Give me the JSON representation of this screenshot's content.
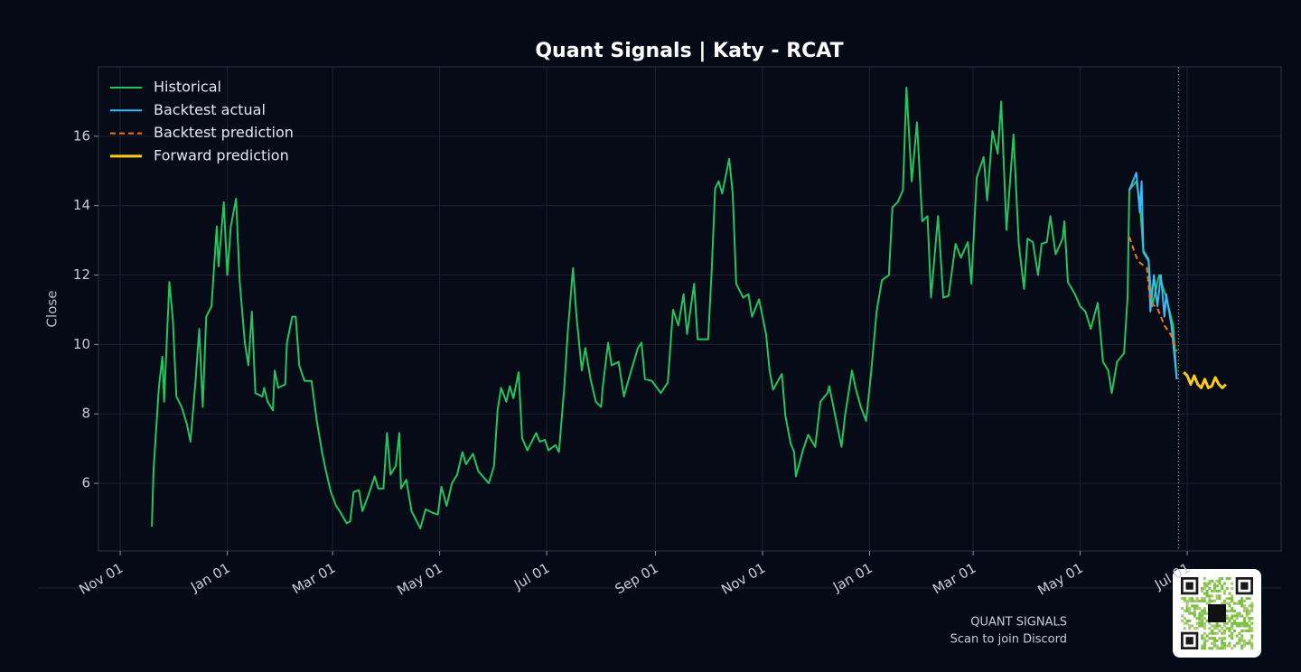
{
  "chart_data": {
    "type": "line",
    "title": "Quant Signals | Katy - RCAT",
    "y_label": "Close",
    "xlim": [
      -12.4,
      661.5
    ],
    "ylim": [
      4.05,
      18.0
    ],
    "xticks": [
      {
        "value": 0,
        "label": "Nov 01"
      },
      {
        "value": 61,
        "label": "Jan 01"
      },
      {
        "value": 121,
        "label": "Mar 01"
      },
      {
        "value": 182,
        "label": "May 01"
      },
      {
        "value": 243,
        "label": "Jul 01"
      },
      {
        "value": 305,
        "label": "Sep 01"
      },
      {
        "value": 366,
        "label": "Nov 01"
      },
      {
        "value": 427,
        "label": "Jan 01"
      },
      {
        "value": 486,
        "label": "Mar 01"
      },
      {
        "value": 547,
        "label": "May 01"
      },
      {
        "value": 608,
        "label": "Jul 01"
      }
    ],
    "yticks": [
      6,
      8,
      10,
      12,
      14,
      16
    ],
    "grid": true,
    "legend": "upper left",
    "marker_x": 603,
    "series": [
      {
        "name": "Historical",
        "color": "#22c55e",
        "style": "solid",
        "x": [
          18,
          19,
          22,
          24,
          25,
          28,
          30,
          32,
          35,
          38,
          40,
          43,
          45,
          47,
          49,
          52,
          55,
          56,
          59,
          61,
          63,
          66,
          68,
          71,
          73,
          75,
          77,
          81,
          82,
          84,
          87,
          88,
          90,
          94,
          95,
          98,
          100,
          102,
          105,
          109,
          112,
          115,
          117,
          120,
          123,
          125,
          129,
          131,
          133,
          136,
          138,
          141,
          145,
          147,
          150,
          152,
          154,
          157,
          159,
          160,
          163,
          166,
          171,
          174,
          178,
          181,
          183,
          186,
          189,
          192,
          195,
          197,
          201,
          204,
          210,
          213,
          215,
          217,
          220,
          222,
          224,
          227,
          229,
          232,
          237,
          239,
          242,
          244,
          248,
          250,
          253,
          255,
          258,
          260,
          263,
          265,
          268,
          271,
          274,
          275,
          278,
          280,
          284,
          287,
          290,
          295,
          297,
          299,
          303,
          308,
          312,
          315,
          318,
          321,
          323,
          327,
          329,
          335,
          337,
          339,
          341,
          343,
          347,
          349,
          351,
          355,
          358,
          360,
          364,
          368,
          370,
          372,
          377,
          379,
          382,
          384,
          385,
          389,
          392,
          396,
          399,
          403,
          404,
          408,
          411,
          413,
          417,
          419,
          422,
          425,
          428,
          431,
          434,
          438,
          440,
          443,
          446,
          448,
          451,
          454,
          457,
          460,
          462,
          466,
          469,
          472,
          476,
          479,
          483,
          485,
          488,
          492,
          494,
          497,
          500,
          502,
          505,
          509,
          512,
          515,
          517,
          520,
          523,
          525,
          528,
          530,
          533,
          537,
          538,
          540,
          544,
          547,
          550,
          553,
          557,
          560,
          563,
          565,
          568,
          572,
          574,
          575,
          579,
          581,
          583,
          586,
          588,
          592,
          596,
          600,
          602
        ],
        "values": [
          4.75,
          6.4,
          8.75,
          9.65,
          8.35,
          11.8,
          10.7,
          8.5,
          8.2,
          7.7,
          7.2,
          9.0,
          10.45,
          8.2,
          10.8,
          11.1,
          13.4,
          12.25,
          14.1,
          12.0,
          13.4,
          14.2,
          11.85,
          10.05,
          9.4,
          10.95,
          8.6,
          8.5,
          8.75,
          8.35,
          8.1,
          9.25,
          8.75,
          8.85,
          10.05,
          10.8,
          10.8,
          9.4,
          8.95,
          8.95,
          7.8,
          6.9,
          6.4,
          5.75,
          5.35,
          5.2,
          4.85,
          4.9,
          5.75,
          5.8,
          5.2,
          5.6,
          6.2,
          5.85,
          5.85,
          7.45,
          6.25,
          6.5,
          7.45,
          5.85,
          6.1,
          5.2,
          4.7,
          5.25,
          5.15,
          5.1,
          5.9,
          5.35,
          6.0,
          6.25,
          6.9,
          6.55,
          6.85,
          6.35,
          6.0,
          6.5,
          8.1,
          8.75,
          8.35,
          8.8,
          8.45,
          9.2,
          7.3,
          6.95,
          7.45,
          7.2,
          7.25,
          6.95,
          7.1,
          6.9,
          8.75,
          10.35,
          12.2,
          10.8,
          9.25,
          9.9,
          9.0,
          8.35,
          8.2,
          8.8,
          10.05,
          9.4,
          9.5,
          8.5,
          9.05,
          9.9,
          10.05,
          9.0,
          8.95,
          8.6,
          8.9,
          11.0,
          10.55,
          11.45,
          10.3,
          11.75,
          10.15,
          10.15,
          12.1,
          14.5,
          14.7,
          14.35,
          15.35,
          14.35,
          11.75,
          11.35,
          11.45,
          10.8,
          11.3,
          10.3,
          9.25,
          8.7,
          9.15,
          7.95,
          7.15,
          6.9,
          6.2,
          6.95,
          7.4,
          7.05,
          8.35,
          8.6,
          8.8,
          7.8,
          7.05,
          7.95,
          9.25,
          8.75,
          8.2,
          7.8,
          9.25,
          10.95,
          11.85,
          12.0,
          13.95,
          14.1,
          14.45,
          17.4,
          14.7,
          16.4,
          13.55,
          13.7,
          11.35,
          13.7,
          11.35,
          11.4,
          12.9,
          12.5,
          12.95,
          11.75,
          14.8,
          15.4,
          14.15,
          16.15,
          15.5,
          17.0,
          13.3,
          16.05,
          12.9,
          11.6,
          13.05,
          12.95,
          12.0,
          12.9,
          12.95,
          13.7,
          12.6,
          13.05,
          13.55,
          11.8,
          11.45,
          11.1,
          10.95,
          10.45,
          11.2,
          9.5,
          9.25,
          8.6,
          9.5,
          9.75,
          11.35,
          14.45,
          14.7,
          14.1,
          12.65,
          12.4,
          11.1,
          12.0,
          11.35,
          10.55,
          9.0
        ]
      },
      {
        "name": "Backtest actual",
        "color": "#38bdf8",
        "style": "solid",
        "x": [
          575,
          577,
          579,
          581,
          582,
          583,
          586,
          587,
          589,
          591,
          593,
          595,
          596,
          599,
          602
        ],
        "values": [
          14.45,
          14.7,
          14.95,
          13.8,
          14.7,
          12.7,
          12.45,
          10.95,
          12.0,
          11.1,
          12.0,
          10.8,
          11.45,
          10.55,
          9.0
        ]
      },
      {
        "name": "Backtest prediction",
        "color": "#f97316",
        "style": "dashed",
        "x": [
          575,
          578,
          580,
          585,
          587,
          591,
          595,
          599,
          602
        ],
        "values": [
          13.1,
          12.65,
          12.4,
          12.2,
          11.2,
          11.05,
          10.55,
          10.25,
          9.8
        ]
      },
      {
        "name": "Forward prediction",
        "color": "#facc15",
        "style": "thick",
        "x": [
          606,
          608,
          610,
          612,
          614,
          616,
          618,
          620,
          622,
          624,
          626,
          628,
          630
        ],
        "values": [
          9.2,
          9.1,
          8.85,
          9.1,
          8.85,
          8.75,
          9.0,
          8.75,
          8.8,
          9.05,
          8.85,
          8.75,
          8.85
        ]
      }
    ]
  },
  "footer": {
    "brand": "QUANT SIGNALS",
    "caption": "Scan to join Discord"
  }
}
